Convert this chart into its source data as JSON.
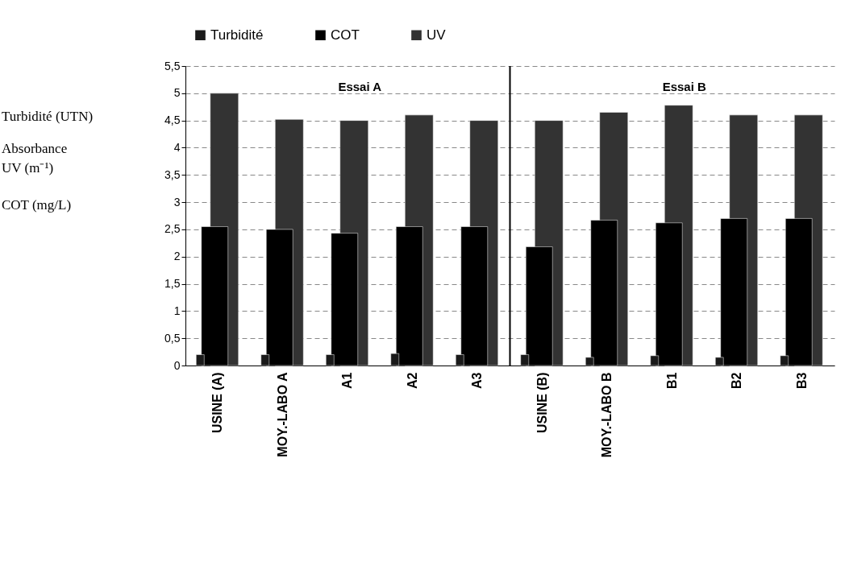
{
  "chart_data": {
    "type": "bar",
    "categories": [
      "USINE (A)",
      "MOY.-LABO A",
      "A1",
      "A2",
      "A3",
      "USINE (B)",
      "MOY.-LABO B",
      "B1",
      "B2",
      "B3"
    ],
    "series": [
      {
        "name": "Turbidité",
        "color": "#1a1a1a",
        "values": [
          0.2,
          0.2,
          0.2,
          0.22,
          0.2,
          0.2,
          0.15,
          0.18,
          0.15,
          0.18
        ]
      },
      {
        "name": "COT",
        "color": "#000000",
        "values": [
          2.55,
          2.5,
          2.43,
          2.55,
          2.55,
          2.18,
          2.67,
          2.62,
          2.7,
          2.7
        ]
      },
      {
        "name": "UV",
        "color": "#333333",
        "values": [
          5.0,
          4.52,
          4.5,
          4.6,
          4.5,
          4.5,
          4.65,
          4.78,
          4.6,
          4.6
        ]
      }
    ],
    "ylim": [
      0,
      5.5
    ],
    "yticks": [
      {
        "value": 0,
        "label": "0"
      },
      {
        "value": 0.5,
        "label": "0,5"
      },
      {
        "value": 1,
        "label": "1"
      },
      {
        "value": 1.5,
        "label": "1,5"
      },
      {
        "value": 2,
        "label": "2"
      },
      {
        "value": 2.5,
        "label": "2,5"
      },
      {
        "value": 3,
        "label": "3"
      },
      {
        "value": 3.5,
        "label": "3,5"
      },
      {
        "value": 4,
        "label": "4"
      },
      {
        "value": 4.5,
        "label": "4,5"
      },
      {
        "value": 5,
        "label": "5"
      },
      {
        "value": 5.5,
        "label": "5,5"
      }
    ],
    "annotations": [
      "Essai A",
      "Essai B",
      "Turbidité (UTN)",
      "Absorbance\nUV (m⁻¹)",
      "COT (mg/L)"
    ],
    "ref_lines": [
      {
        "axis": "x",
        "value": "USINE (B)",
        "color": "#000000"
      }
    ],
    "grid": "y",
    "legend": "top"
  }
}
